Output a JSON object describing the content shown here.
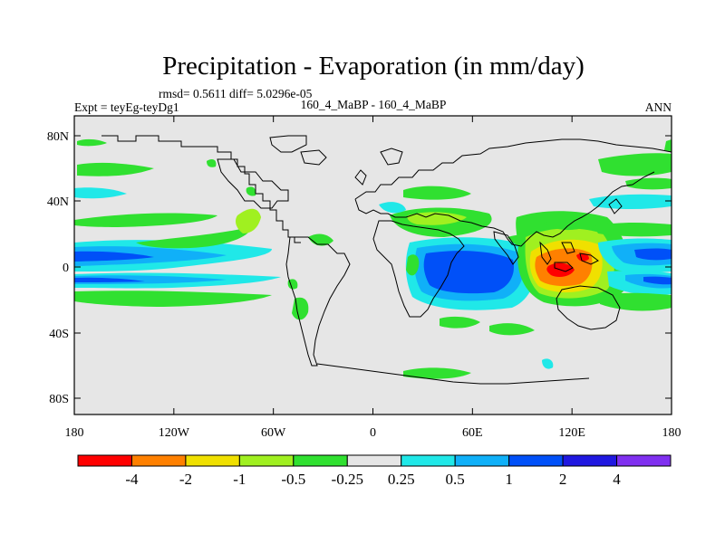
{
  "title": "Precipitation - Evaporation (in mm/day)",
  "stats_line": "rmsd= 0.5611 diff= 5.0296e-05",
  "left_label": "Expt = teyEg-teyDg1",
  "center_label": "160_4_MaBP - 160_4_MaBP",
  "right_label": "ANN",
  "map": {
    "lon_ticks": [
      "180",
      "120W",
      "60W",
      "0",
      "60E",
      "120E",
      "180"
    ],
    "lat_ticks": [
      "80N",
      "40N",
      "0",
      "40S",
      "80S"
    ],
    "background_color": "#e6e6e6"
  },
  "colorbar": {
    "colors": [
      "#ff0000",
      "#ff8000",
      "#f0e000",
      "#a0f020",
      "#30e030",
      "#e6e6e6",
      "#20e8e8",
      "#10b0f8",
      "#0050f8",
      "#2018e0",
      "#8030f0"
    ],
    "labels": [
      "-4",
      "-2",
      "-1",
      "-0.5",
      "-0.25",
      "0.25",
      "0.5",
      "1",
      "2",
      "4"
    ]
  }
}
